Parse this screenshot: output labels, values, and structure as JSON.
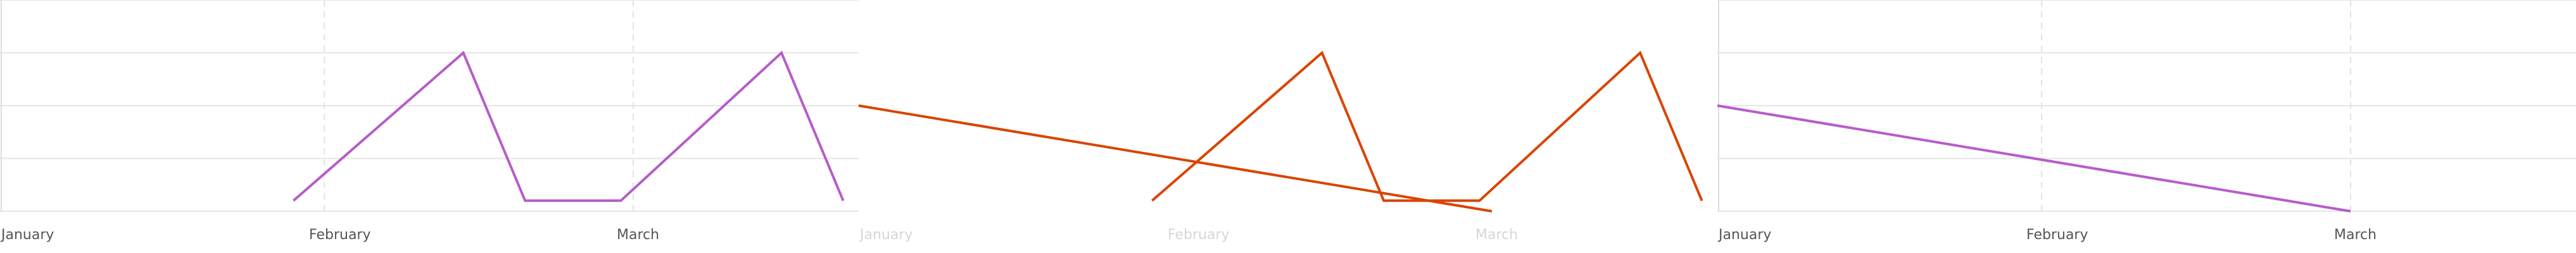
{
  "chart_data": [
    {
      "type": "line",
      "x_categories": [
        "January",
        "February",
        "March"
      ],
      "x_range": [
        -0.05,
        2.73
      ],
      "ylim": [
        0,
        4
      ],
      "grid": true,
      "faded_tick_labels": false,
      "series": [
        {
          "color": "#b65cc8",
          "x": [
            0.9,
            1.45,
            1.65,
            1.96,
            2.48,
            2.68
          ],
          "y": [
            0.2,
            3.0,
            0.2,
            0.2,
            3.0,
            0.2
          ]
        }
      ]
    },
    {
      "type": "line",
      "x_categories": [
        "January",
        "February",
        "March"
      ],
      "x_range": [
        -0.05,
        2.73
      ],
      "ylim": [
        0,
        4
      ],
      "grid": false,
      "faded_tick_labels": true,
      "series": [
        {
          "color": "#d94400",
          "x": [
            0.9,
            1.45,
            1.65,
            1.96,
            2.48,
            2.68
          ],
          "y": [
            0.2,
            3.0,
            0.2,
            0.2,
            3.0,
            0.2
          ]
        },
        {
          "color": "#d94400",
          "x": [
            -0.05,
            2.0
          ],
          "y": [
            2.0,
            0.0
          ]
        }
      ]
    },
    {
      "type": "line",
      "x_categories": [
        "January",
        "February",
        "March"
      ],
      "x_range": [
        -0.05,
        2.73
      ],
      "ylim": [
        0,
        4
      ],
      "grid": true,
      "faded_tick_labels": false,
      "series": [
        {
          "color": "#b65cc8",
          "x": [
            -0.05,
            2.0
          ],
          "y": [
            2.0,
            0.0
          ]
        }
      ]
    }
  ]
}
